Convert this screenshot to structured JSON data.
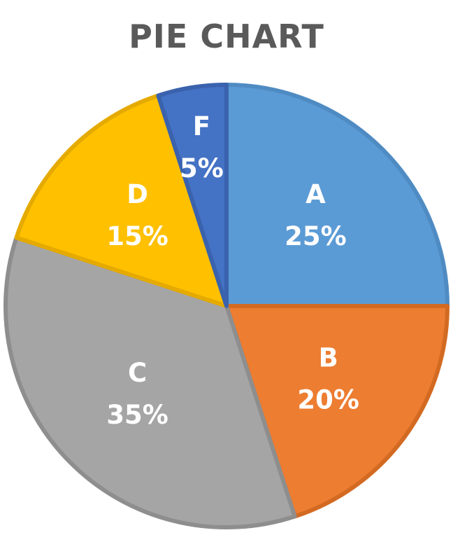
{
  "chart_data": {
    "type": "pie",
    "title": "PIE CHART",
    "slices": [
      {
        "label": "A",
        "value": 25,
        "value_label": "25%",
        "color": "#5B9BD5",
        "stroke": "#4F8BC3"
      },
      {
        "label": "B",
        "value": 20,
        "value_label": "20%",
        "color": "#ED7D31",
        "stroke": "#D36A22"
      },
      {
        "label": "C",
        "value": 35,
        "value_label": "35%",
        "color": "#A5A5A5",
        "stroke": "#8E8E8E"
      },
      {
        "label": "D",
        "value": 15,
        "value_label": "15%",
        "color": "#FFC000",
        "stroke": "#E5AA00"
      },
      {
        "label": "F",
        "value": 5,
        "value_label": "5%",
        "color": "#4472C4",
        "stroke": "#3A62AD"
      }
    ],
    "start": "12 o'clock",
    "direction": "clockwise",
    "legend": "none",
    "labels": "inside"
  }
}
